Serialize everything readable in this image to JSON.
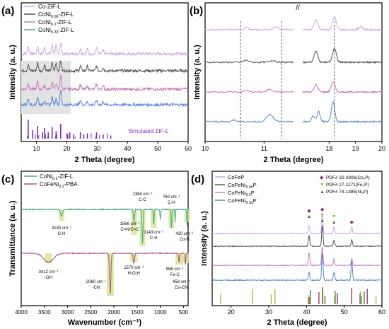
{
  "panels": {
    "a": {
      "label": "(a)",
      "legend": [
        {
          "text": "Co-ZIF-L",
          "color": "#c9a9e6"
        },
        {
          "text": "CoNi",
          "sub": "0.06",
          "tail": "-ZIF-L",
          "color": "#555555"
        },
        {
          "text": "CoNi",
          "sub": "0.2",
          "tail": "-ZIF-L",
          "color": "#c77bb8"
        },
        {
          "text": "CoNi",
          "sub": "0.33",
          "tail": "-ZIF-L",
          "color": "#5a87d6"
        }
      ],
      "ylabel": "Intensity (a. u.)",
      "xlabel": "2 Theta (degree)",
      "xticks": [
        "10",
        "20",
        "30",
        "40",
        "50",
        "60"
      ],
      "sim_label": "Simulated ZIF-L"
    },
    "b": {
      "label": "(b)",
      "ylabel": "Intensity (a. u.)",
      "xlabel": "2 Theta (degree)",
      "xticks": [
        "10",
        "11",
        "18",
        "19",
        "20"
      ],
      "break_mark": "//"
    },
    "c": {
      "label": "(c)",
      "legend": [
        {
          "text": "CoNi",
          "sub": "0.2",
          "tail": "-ZIF-L",
          "color": "#4aa88a"
        },
        {
          "text": "CoFeNi",
          "sub": "0.2",
          "tail": "-PBA",
          "color": "#b0508a"
        }
      ],
      "ylabel": "Transmittance (a. u.)",
      "xlabel": "Wavenumber (cm⁻¹)",
      "xticks": [
        "4000",
        "3500",
        "3000",
        "2500",
        "2000",
        "1500",
        "1000",
        "500"
      ],
      "annotations": [
        {
          "top": "1384 cm⁻¹",
          "bottom": "C-C"
        },
        {
          "top": "760 cm⁻¹",
          "bottom": "C-H"
        },
        {
          "top": "1566 cm⁻¹",
          "bottom": "C=N/C=C"
        },
        {
          "top": "1143 cm⁻¹",
          "bottom": "C-H"
        },
        {
          "top": "3130 cm⁻¹",
          "bottom": "C-H"
        },
        {
          "top": "420 cm⁻¹",
          "bottom": "Co-N"
        },
        {
          "top": "3412 cm⁻¹",
          "bottom": "-OH"
        },
        {
          "top": "2080 cm⁻¹",
          "bottom": "-CN"
        },
        {
          "top": "1570 cm⁻¹",
          "bottom": "H-O-H"
        },
        {
          "top": "596 cm⁻¹",
          "bottom": "Fe-C"
        },
        {
          "top": "458 cm⁻¹",
          "bottom": "Co-CN"
        }
      ]
    },
    "d": {
      "label": "(d)",
      "legend": [
        {
          "text": "CoFeP",
          "color": "#c9a9e6"
        },
        {
          "text": "CoFeNi",
          "sub": "0.06",
          "tail": "P",
          "color": "#555555"
        },
        {
          "text": "CoFeNi",
          "sub": "0.2",
          "tail": "P",
          "color": "#c77bb8"
        },
        {
          "text": "CoFeNi",
          "sub": "0.33",
          "tail": "P",
          "color": "#5a87d6"
        }
      ],
      "pdf_legend": [
        {
          "marker": "◆",
          "text": "PDF# 32-0306(Co₂P)",
          "color": "#8e2a6b"
        },
        {
          "marker": "▼",
          "text": "PDF# 27-1171(Fe₂P)",
          "color": "#8fbf3a"
        },
        {
          "marker": "▲",
          "text": "PDF# 74-1385(Ni₂P)",
          "color": "#3d7a2a"
        }
      ],
      "ylabel": "Intensity (a. u.)",
      "xlabel": "2 Theta (degree)",
      "xticks": [
        "20",
        "30",
        "40",
        "50",
        "60"
      ]
    }
  },
  "chart_data": [
    {
      "type": "line",
      "panel": "a",
      "title": "",
      "xlabel": "2 Theta (degree)",
      "ylabel": "Intensity (a. u.)",
      "xlim": [
        5,
        60
      ],
      "series": [
        {
          "name": "Co-ZIF-L",
          "color": "#c9a9e6",
          "offset": 3,
          "x": [
            7.3,
            10.4,
            12.7,
            15.2,
            16.5,
            18.0,
            24.5,
            26.8,
            29.8,
            32.0
          ],
          "y": [
            0.5,
            0.5,
            0.4,
            0.6,
            0.5,
            0.7,
            0.3,
            0.3,
            0.4,
            0.2
          ]
        },
        {
          "name": "CoNi0.06-ZIF-L",
          "color": "#555555",
          "offset": 2,
          "x": [
            7.3,
            10.4,
            12.7,
            15.2,
            16.5,
            18.0,
            24.5,
            26.8,
            29.8,
            32.0
          ],
          "y": [
            0.4,
            0.5,
            0.4,
            0.5,
            0.5,
            0.6,
            0.3,
            0.3,
            0.3,
            0.2
          ]
        },
        {
          "name": "CoNi0.2-ZIF-L",
          "color": "#c77bb8",
          "offset": 1,
          "x": [
            7.3,
            10.4,
            12.7,
            15.2,
            16.5,
            18.0,
            24.5,
            26.8,
            29.8,
            32.0
          ],
          "y": [
            0.4,
            0.5,
            0.3,
            0.5,
            0.4,
            0.9,
            0.3,
            0.2,
            0.3,
            0.2
          ]
        },
        {
          "name": "CoNi0.33-ZIF-L",
          "color": "#5a87d6",
          "offset": 0,
          "x": [
            7.3,
            10.4,
            12.7,
            15.2,
            16.5,
            18.0,
            24.5,
            26.8,
            29.8,
            32.0
          ],
          "y": [
            0.4,
            0.5,
            0.3,
            0.5,
            0.4,
            1.0,
            0.3,
            0.2,
            0.3,
            0.2
          ]
        }
      ],
      "reference": {
        "name": "Simulated ZIF-L",
        "color": "#7b2fbe",
        "x": [
          7.3,
          8.8,
          10.4,
          12.0,
          12.7,
          13.9,
          15.2,
          16.5,
          18.0,
          20.1,
          21.0,
          22.3,
          24.5,
          25.6,
          26.8,
          29.8,
          32.0,
          34.5
        ],
        "y": [
          0.9,
          0.4,
          0.6,
          0.3,
          0.5,
          0.3,
          0.55,
          0.35,
          0.7,
          0.25,
          0.3,
          0.2,
          0.3,
          0.2,
          0.25,
          0.3,
          0.2,
          0.15
        ]
      }
    },
    {
      "type": "line",
      "panel": "b",
      "xlabel": "2 Theta (degree)",
      "ylabel": "Intensity (a. u.)",
      "xlim": [
        10,
        20
      ],
      "broken_axis": [
        11.5,
        17
      ],
      "reference_lines": [
        10.6,
        11.3,
        18.2
      ]
    },
    {
      "type": "line",
      "panel": "c",
      "xlabel": "Wavenumber (cm⁻¹)",
      "ylabel": "Transmittance (a. u.)",
      "xlim": [
        4000,
        400
      ],
      "series": [
        {
          "name": "CoNi0.2-ZIF-L",
          "color": "#4aa88a",
          "bands": [
            3130,
            1566,
            1384,
            1143,
            760,
            420
          ]
        },
        {
          "name": "CoFeNi0.2-PBA",
          "color": "#b0508a",
          "bands": [
            3412,
            2080,
            1570,
            596,
            458
          ]
        }
      ]
    },
    {
      "type": "line",
      "panel": "d",
      "xlabel": "2 Theta (degree)",
      "ylabel": "Intensity (a. u.)",
      "xlim": [
        15,
        60
      ],
      "series": [
        {
          "name": "CoFeP",
          "color": "#c9a9e6",
          "offset": 3,
          "x": [
            40.7,
            44.2,
            47.3,
            52.0
          ],
          "y": [
            0.4,
            1.0,
            0.3,
            0.3
          ]
        },
        {
          "name": "CoFeNi0.06P",
          "color": "#555555",
          "offset": 2,
          "x": [
            40.7,
            44.2,
            47.3,
            52.0
          ],
          "y": [
            0.5,
            1.0,
            0.3,
            0.3
          ]
        },
        {
          "name": "CoFeNi0.2P",
          "color": "#c77bb8",
          "offset": 1,
          "x": [
            40.7,
            44.2,
            47.3,
            52.0
          ],
          "y": [
            0.6,
            0.9,
            0.3,
            0.3
          ]
        },
        {
          "name": "CoFeNi0.33P",
          "color": "#5a87d6",
          "offset": 0,
          "x": [
            40.7,
            44.2,
            47.3,
            52.0
          ],
          "y": [
            0.3,
            1.0,
            0.3,
            0.7
          ]
        }
      ],
      "references": [
        {
          "name": "PDF# 32-0306(Co2P)",
          "color": "#8e2a6b",
          "x": [
            40.7,
            43.3,
            44.2,
            48.2,
            52.0,
            54.2,
            56.1
          ]
        },
        {
          "name": "PDF# 27-1171(Fe2P)",
          "color": "#8fbf3a",
          "x": [
            17.1,
            25.5,
            30.5,
            31.5,
            40.3,
            44.2,
            47.3,
            54.2,
            58.3
          ]
        },
        {
          "name": "PDF# 74-1385(Ni2P)",
          "color": "#3d7a2a",
          "x": [
            40.7,
            44.6,
            47.3,
            54.2,
            55.0
          ]
        }
      ]
    }
  ]
}
